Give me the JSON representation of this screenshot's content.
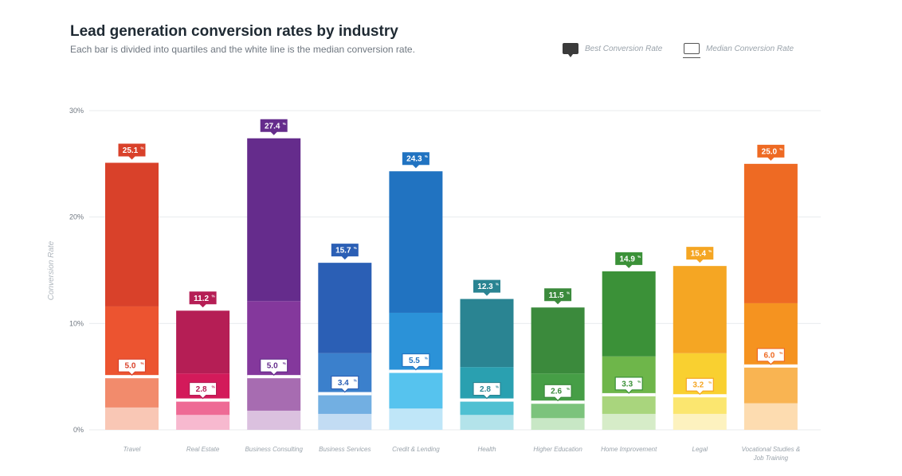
{
  "header": {
    "title": "Lead generation conversion rates by industry",
    "subtitle": "Each bar is divided into quartiles and the white line is the median conversion rate."
  },
  "legend": {
    "best_label": "Best Conversion Rate",
    "median_label": "Median Conversion Rate"
  },
  "chart_data": {
    "type": "bar",
    "title": "Lead generation conversion rates by industry",
    "xlabel": "",
    "ylabel": "Conversion Rate",
    "ylim": [
      0,
      30
    ],
    "yticks": [
      "0%",
      "10%",
      "20%",
      "30%"
    ],
    "categories": [
      "Travel",
      "Real Estate",
      "Business Consulting",
      "Business Services",
      "Credit & Lending",
      "Health",
      "Higher Education",
      "Home Improvement",
      "Legal",
      "Vocational Studies & Job Training"
    ],
    "series": [
      {
        "name": "Best Conversion Rate",
        "values": [
          25.1,
          11.2,
          27.4,
          15.7,
          24.3,
          12.3,
          11.5,
          14.9,
          15.4,
          25.0
        ]
      },
      {
        "name": "Median Conversion Rate",
        "values": [
          5.0,
          2.8,
          5.0,
          3.4,
          5.5,
          2.8,
          2.6,
          3.3,
          3.2,
          6.0
        ]
      },
      {
        "name": "Lower quartile",
        "values": [
          2.1,
          1.4,
          1.8,
          1.5,
          2.0,
          1.4,
          1.1,
          1.5,
          1.5,
          2.5
        ]
      },
      {
        "name": "Upper quartile",
        "values": [
          11.6,
          5.3,
          12.1,
          7.2,
          11.0,
          5.9,
          5.3,
          6.9,
          7.2,
          11.9
        ]
      }
    ],
    "best_labels": [
      "25.1",
      "11.2",
      "27.4",
      "15.7",
      "24.3",
      "12.3",
      "11.5",
      "14.9",
      "15.4",
      "25.0"
    ],
    "median_labels": [
      "5.0",
      "2.8",
      "5.0",
      "3.4",
      "5.5",
      "2.8",
      "2.6",
      "3.3",
      "3.2",
      "6.0"
    ],
    "label_unit": "%",
    "colors": [
      {
        "top": "#d9412a",
        "upper": "#ec5430",
        "mid": "#f28b6c",
        "low": "#f9c7b5"
      },
      {
        "top": "#b51e55",
        "upper": "#d31a5a",
        "mid": "#ee6a95",
        "low": "#f7b9cf"
      },
      {
        "top": "#652c8c",
        "upper": "#84389c",
        "mid": "#a76cb1",
        "low": "#dbc1df"
      },
      {
        "top": "#2b5fb5",
        "upper": "#3b80cc",
        "mid": "#72afe2",
        "low": "#c2dcf3"
      },
      {
        "top": "#2173c1",
        "upper": "#2b92d8",
        "mid": "#56c3ee",
        "low": "#bfe6f8"
      },
      {
        "top": "#2a8492",
        "upper": "#2aa0b0",
        "mid": "#4fc0d2",
        "low": "#b3e3ea"
      },
      {
        "top": "#3b8a3c",
        "upper": "#469e46",
        "mid": "#7cc37c",
        "low": "#c8e7c5"
      },
      {
        "top": "#3b9138",
        "upper": "#6eb64a",
        "mid": "#a9d57d",
        "low": "#d6ecc8"
      },
      {
        "top": "#f5a623",
        "upper": "#f9d030",
        "mid": "#fbe66f",
        "low": "#fdf2bf"
      },
      {
        "top": "#ee6a23",
        "upper": "#f59320",
        "mid": "#f9b452",
        "low": "#fddcb0"
      }
    ]
  }
}
